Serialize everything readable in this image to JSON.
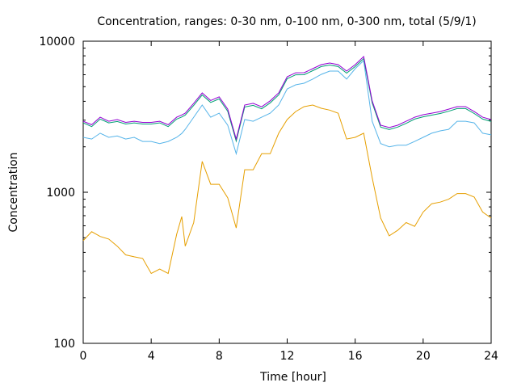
{
  "chart_data": {
    "type": "line",
    "title": "Concentration, ranges: 0-30 nm, 0-100 nm, 0-300 nm, total (5/9/1)",
    "xlabel": "Time [hour]",
    "ylabel": "Concentration",
    "xlim": [
      0,
      24
    ],
    "ylim": [
      100,
      10000
    ],
    "yscale": "log",
    "xticks": [
      0,
      4,
      8,
      12,
      16,
      20,
      24
    ],
    "xtick_labels": [
      "0",
      "4",
      "8",
      "12",
      "16",
      "20",
      "24"
    ],
    "yticks": [
      100,
      1000,
      10000
    ],
    "ytick_labels": [
      "100",
      "1000",
      "10000"
    ],
    "x": [
      0,
      0.5,
      1,
      1.5,
      2,
      2.5,
      3,
      3.5,
      4,
      4.5,
      5,
      5.5,
      5.8,
      6,
      6.5,
      7,
      7.5,
      8,
      8.5,
      9,
      9.5,
      10,
      10.5,
      11,
      11.5,
      12,
      12.5,
      13,
      13.5,
      14,
      14.5,
      15,
      15.5,
      16,
      16.5,
      17,
      17.5,
      18,
      18.5,
      19,
      19.5,
      20,
      20.5,
      21,
      21.5,
      22,
      22.5,
      23,
      23.5,
      24
    ],
    "series": [
      {
        "name": "0-30 nm",
        "color": "#e69f00",
        "values": [
          478,
          548,
          510,
          490,
          440,
          385,
          374,
          365,
          290,
          310,
          290,
          527,
          690,
          440,
          630,
          1600,
          1130,
          1130,
          920,
          580,
          1410,
          1410,
          1800,
          1800,
          2460,
          3030,
          3420,
          3690,
          3780,
          3600,
          3500,
          3340,
          2250,
          2310,
          2460,
          1250,
          675,
          515,
          560,
          630,
          595,
          740,
          840,
          860,
          900,
          980,
          980,
          930,
          740,
          675
        ]
      },
      {
        "name": "0-100 nm",
        "color": "#56b4e9",
        "values": [
          2310,
          2250,
          2460,
          2310,
          2360,
          2250,
          2310,
          2170,
          2170,
          2100,
          2170,
          2310,
          2450,
          2610,
          3140,
          3780,
          3140,
          3340,
          2780,
          1800,
          3030,
          2950,
          3140,
          3340,
          3780,
          4830,
          5140,
          5270,
          5610,
          6030,
          6340,
          6340,
          5610,
          6580,
          7440,
          2950,
          2100,
          2000,
          2050,
          2050,
          2170,
          2310,
          2460,
          2550,
          2610,
          2950,
          2950,
          2880,
          2460,
          2400
        ]
      },
      {
        "name": "0-300 nm",
        "color": "#009e73",
        "values": [
          2880,
          2720,
          3050,
          2880,
          2940,
          2830,
          2880,
          2830,
          2830,
          2880,
          2720,
          3050,
          3150,
          3240,
          3760,
          4410,
          3930,
          4150,
          3440,
          2180,
          3670,
          3760,
          3570,
          3910,
          4410,
          5650,
          5990,
          6000,
          6380,
          6790,
          6950,
          6790,
          6150,
          6790,
          7670,
          3910,
          2700,
          2600,
          2700,
          2860,
          3050,
          3160,
          3240,
          3320,
          3440,
          3580,
          3580,
          3320,
          3050,
          2940
        ]
      },
      {
        "name": "total",
        "color": "#9400d3",
        "values": [
          2950,
          2800,
          3140,
          2950,
          3030,
          2900,
          2950,
          2900,
          2900,
          2950,
          2800,
          3140,
          3250,
          3340,
          3880,
          4550,
          4050,
          4280,
          3550,
          2250,
          3780,
          3880,
          3680,
          4030,
          4550,
          5820,
          6180,
          6190,
          6580,
          7000,
          7170,
          7000,
          6340,
          7000,
          7910,
          4030,
          2780,
          2680,
          2780,
          2950,
          3140,
          3260,
          3340,
          3420,
          3550,
          3690,
          3690,
          3420,
          3140,
          3030
        ]
      }
    ]
  }
}
